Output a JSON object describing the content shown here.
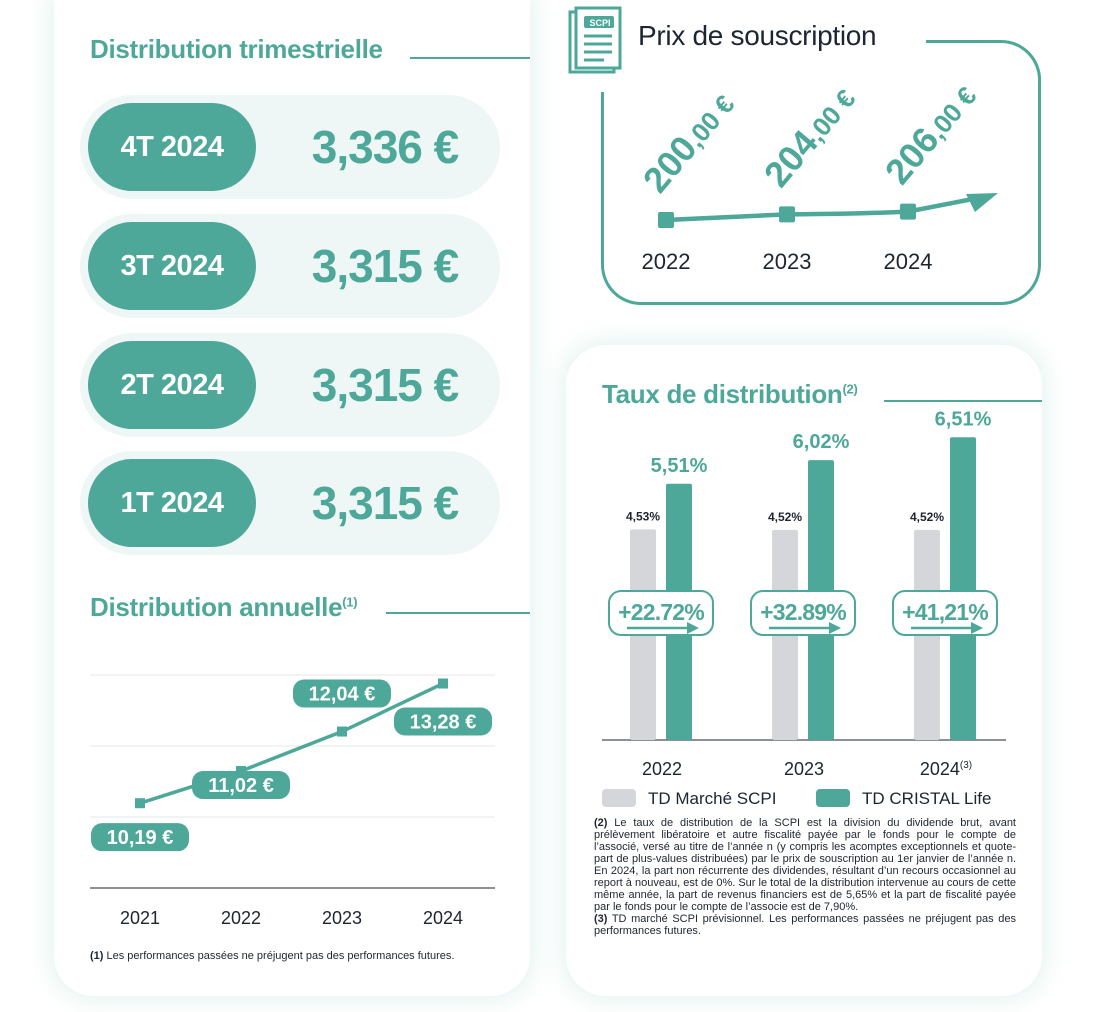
{
  "distribution_trimestrielle": {
    "title": "Distribution trimestrielle",
    "rows": [
      {
        "quarter": "4T 2024",
        "amount": "3,336 €"
      },
      {
        "quarter": "3T 2024",
        "amount": "3,315 €"
      },
      {
        "quarter": "2T 2024",
        "amount": "3,315 €"
      },
      {
        "quarter": "1T 2024",
        "amount": "3,315 €"
      }
    ]
  },
  "prix_souscription": {
    "title": "Prix de souscription",
    "icon_label": "SCPI",
    "icon": "document-icon",
    "prices": [
      {
        "year": "2022",
        "main": "200",
        "dec": ",00 €"
      },
      {
        "year": "2023",
        "main": "204",
        "dec": ",00 €"
      },
      {
        "year": "2024",
        "main": "206",
        "dec": ",00 €"
      }
    ]
  },
  "distribution_annuelle": {
    "title": "Distribution annuelle",
    "title_sup": "(1)",
    "footnote_ref": "(1)",
    "footnote_text": " Les performances passées ne préjugent pas des performances futures."
  },
  "taux_distribution": {
    "title": "Taux de distribution",
    "title_sup": "(2)",
    "legend_market": "TD Marché SCPI",
    "legend_cristal": "TD CRISTAL Life",
    "note2_ref": "(2)",
    "note2_text": " Le taux de distribution de la SCPI est la division du dividende brut, avant prélèvement libératoire et autre fiscalité payée par le fonds pour le compte de l’associé, versé au titre de l’année n (y compris les acomptes exceptionnels et quote-part de plus-values distribuées) par le prix de souscription au 1er janvier de l’année n. En 2024, la part non récurrente des dividendes, résultant d’un recours occasionnel au report à nouveau, est de 0%. Sur le total de la distribution intervenue au cours de cette même année, la part de revenus financiers est de 5,65% et la part de fiscalité payée par le fonds pour le compte de l’associe est de 7,90%.",
    "note3_ref": "(3)",
    "note3_text": " TD marché SCPI prévisionnel. Les performances passées ne préjugent pas des performances futures."
  },
  "colors": {
    "teal": "#4da899",
    "grey": "#d4d6d9",
    "light_teal_bg": "#eef7f5"
  },
  "chart_data": [
    {
      "type": "line",
      "title": "Distribution annuelle",
      "x": [
        "2021",
        "2022",
        "2023",
        "2024"
      ],
      "values": [
        10.19,
        11.02,
        12.04,
        13.28
      ],
      "labels": [
        "10,19 €",
        "11,02 €",
        "12,04 €",
        "13,28 €"
      ],
      "ylim": [
        8,
        13.5
      ],
      "grid": true
    },
    {
      "type": "bar",
      "title": "Taux de distribution",
      "categories": [
        "2022",
        "2023",
        "2024"
      ],
      "category_sup": [
        "",
        "",
        "(3)"
      ],
      "series": [
        {
          "name": "TD Marché SCPI",
          "values": [
            4.53,
            4.52,
            4.52
          ],
          "labels": [
            "4,53%",
            "4,52%",
            "4,52%"
          ],
          "color": "#d4d6d9"
        },
        {
          "name": "TD CRISTAL Life",
          "values": [
            5.51,
            6.02,
            6.51
          ],
          "labels": [
            "5,51%",
            "6,02%",
            "6,51%"
          ],
          "color": "#4da899"
        }
      ],
      "annotations": [
        "+22.72%",
        "+32.89%",
        "+41,21%"
      ],
      "ylim": [
        0,
        6.8
      ]
    },
    {
      "type": "line",
      "title": "Prix de souscription",
      "x": [
        "2022",
        "2023",
        "2024"
      ],
      "values": [
        200,
        204,
        206
      ]
    }
  ]
}
